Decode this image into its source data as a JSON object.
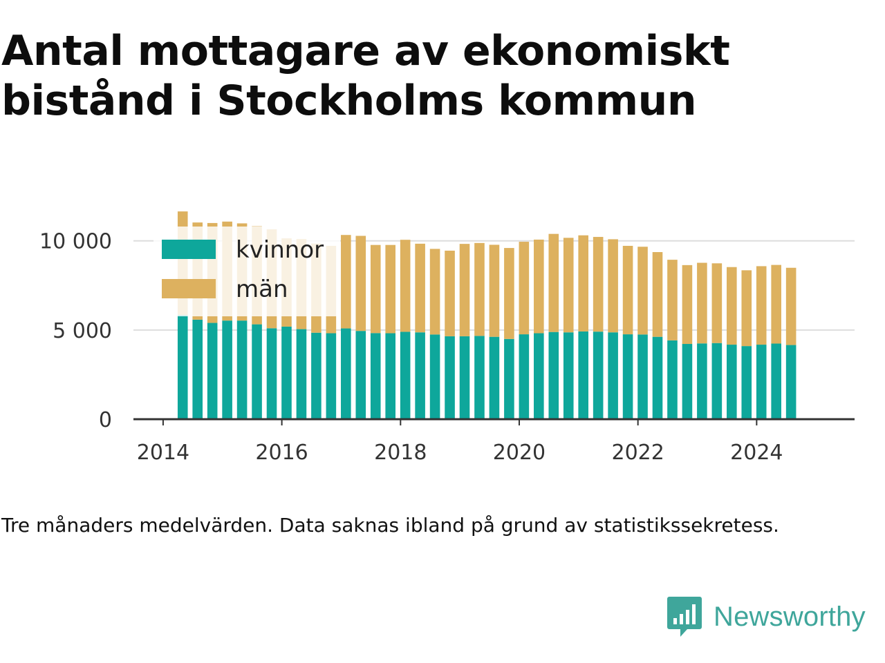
{
  "title": "Antal mottagare av ekonomiskt bistånd i Stockholms kommun",
  "footnote": "Tre månaders medelvärden. Data saknas ibland på grund av statistikssekretess.",
  "brand": {
    "name": "Newsworthy",
    "icon": "newsworthy-logo-icon",
    "color": "#3fa69b"
  },
  "chart_data": {
    "type": "bar",
    "stacked": true,
    "x": [
      2014.33,
      2014.58,
      2014.83,
      2015.08,
      2015.33,
      2015.58,
      2015.83,
      2016.08,
      2016.33,
      2016.58,
      2016.83,
      2017.08,
      2017.33,
      2017.58,
      2017.83,
      2018.08,
      2018.33,
      2018.58,
      2018.83,
      2019.08,
      2019.33,
      2019.58,
      2019.83,
      2020.08,
      2020.33,
      2020.58,
      2020.83,
      2021.08,
      2021.33,
      2021.58,
      2021.83,
      2022.08,
      2022.33,
      2022.58,
      2022.83,
      2023.08,
      2023.33,
      2023.58,
      2023.83,
      2024.08,
      2024.33,
      2024.58
    ],
    "series": [
      {
        "name": "kvinnor",
        "color": "#0ea79b",
        "values": [
          5850,
          5580,
          5400,
          5530,
          5530,
          5320,
          5100,
          5190,
          5050,
          4850,
          4820,
          5090,
          4950,
          4830,
          4820,
          4900,
          4870,
          4750,
          4650,
          4650,
          4670,
          4620,
          4500,
          4760,
          4820,
          4890,
          4870,
          4920,
          4910,
          4870,
          4760,
          4750,
          4620,
          4420,
          4220,
          4250,
          4270,
          4180,
          4100,
          4180,
          4240,
          4160
        ]
      },
      {
        "name": "män",
        "color": "#ddb15f",
        "values": [
          5800,
          5450,
          5600,
          5550,
          5450,
          5500,
          5550,
          4950,
          5050,
          5000,
          4900,
          5240,
          5330,
          4940,
          4950,
          5160,
          4970,
          4800,
          4800,
          5180,
          5210,
          5160,
          5100,
          5190,
          5250,
          5500,
          5300,
          5390,
          5310,
          5220,
          4960,
          4920,
          4750,
          4520,
          4420,
          4520,
          4470,
          4350,
          4250,
          4400,
          4410,
          4330
        ]
      }
    ],
    "xlim": [
      2013.5,
      2025.65
    ],
    "ylim": [
      0,
      11500
    ],
    "xticks": [
      2014,
      2016,
      2018,
      2020,
      2022,
      2024
    ],
    "xtick_labels": [
      "2014",
      "2016",
      "2018",
      "2020",
      "2022",
      "2024"
    ],
    "yticks": [
      0,
      5000,
      10000
    ],
    "ytick_labels": [
      "0",
      "5 000",
      "10 000"
    ],
    "grid": "horizontal",
    "legend": "top-left",
    "xlabel": "",
    "ylabel": ""
  }
}
